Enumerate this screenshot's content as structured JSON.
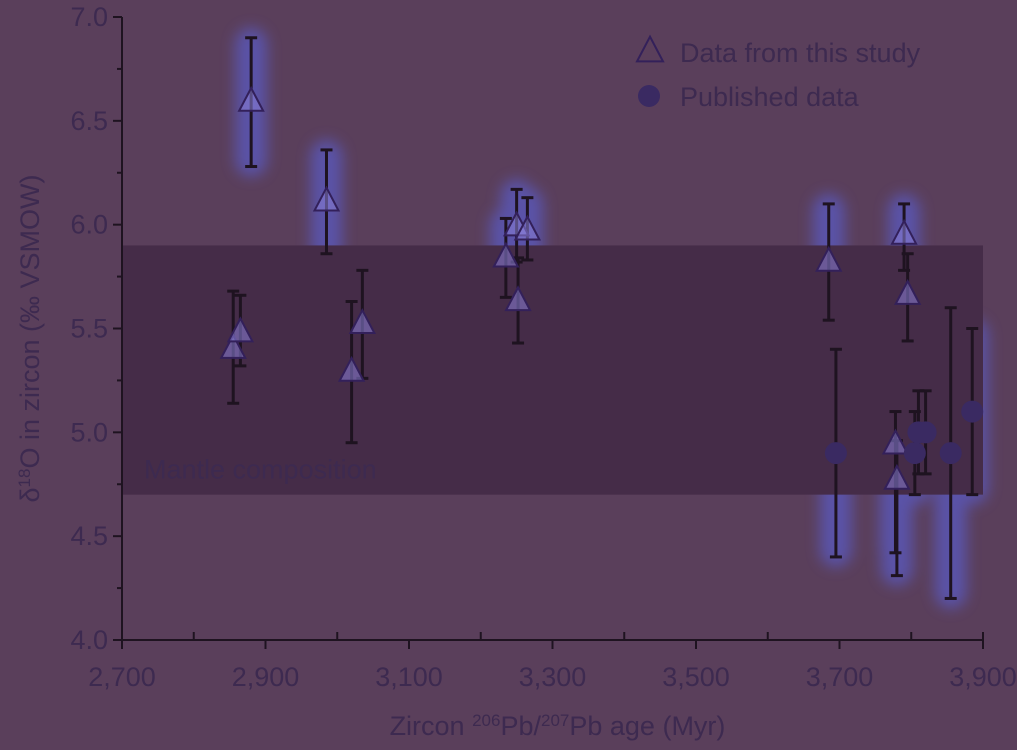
{
  "colors": {
    "background": "#5a3f5b",
    "band": "#452c48",
    "axis": "#1e1320",
    "text": "#3d2a50",
    "study_marker_fill": "#8a7fd8",
    "study_marker_stroke": "#33205a",
    "published_marker": "#3a2a62",
    "glow": "#5a63e6"
  },
  "chart_data": {
    "type": "scatter",
    "xlabel_main": "Zircon ",
    "xlabel_sup1": "206",
    "xlabel_mid": "Pb/",
    "xlabel_sup2": "207",
    "xlabel_end": "Pb age (Myr)",
    "ylabel_pre": "δ",
    "ylabel_sup": "18",
    "ylabel_post": "O in zircon (‰ VSMOW)",
    "xlim": [
      2700,
      3900
    ],
    "ylim": [
      4.0,
      7.0
    ],
    "x_ticks": [
      2700,
      2900,
      3100,
      3300,
      3500,
      3700,
      3900
    ],
    "x_tick_labels": [
      "2,700",
      "2,900",
      "3,100",
      "3,300",
      "3,500",
      "3,700",
      "3,900"
    ],
    "x_minor_ticks": [
      2800,
      3000,
      3200,
      3400,
      3600,
      3800
    ],
    "y_ticks": [
      4.0,
      4.5,
      5.0,
      5.5,
      6.0,
      6.5,
      7.0
    ],
    "y_tick_labels": [
      "4.0",
      "4.5",
      "5.0",
      "5.5",
      "6.0",
      "6.5",
      "7.0"
    ],
    "band": {
      "label": "Mantle composition",
      "y_min": 4.7,
      "y_max": 5.9
    },
    "legend_position": "top-right",
    "series": [
      {
        "name": "Data from this study",
        "marker": "triangle",
        "points": [
          {
            "x": 2855,
            "y": 5.4,
            "lo": 5.14,
            "hi": 5.68
          },
          {
            "x": 2865,
            "y": 5.48,
            "lo": 5.32,
            "hi": 5.66
          },
          {
            "x": 2880,
            "y": 6.59,
            "lo": 6.28,
            "hi": 6.9
          },
          {
            "x": 2985,
            "y": 6.11,
            "lo": 5.86,
            "hi": 6.36
          },
          {
            "x": 3020,
            "y": 5.29,
            "lo": 4.95,
            "hi": 5.63
          },
          {
            "x": 3035,
            "y": 5.52,
            "lo": 5.26,
            "hi": 5.78
          },
          {
            "x": 3235,
            "y": 5.84,
            "lo": 5.65,
            "hi": 6.03
          },
          {
            "x": 3250,
            "y": 5.99,
            "lo": 5.82,
            "hi": 6.17
          },
          {
            "x": 3252,
            "y": 5.63,
            "lo": 5.43,
            "hi": 5.84
          },
          {
            "x": 3265,
            "y": 5.97,
            "lo": 5.83,
            "hi": 6.13
          },
          {
            "x": 3685,
            "y": 5.82,
            "lo": 5.54,
            "hi": 6.1
          },
          {
            "x": 3778,
            "y": 4.94,
            "lo": 4.42,
            "hi": 5.1
          },
          {
            "x": 3780,
            "y": 4.77,
            "lo": 4.31,
            "hi": 4.96
          },
          {
            "x": 3790,
            "y": 5.95,
            "lo": 5.78,
            "hi": 6.1
          },
          {
            "x": 3795,
            "y": 5.66,
            "lo": 5.44,
            "hi": 5.86
          }
        ]
      },
      {
        "name": "Published data",
        "marker": "circle",
        "points": [
          {
            "x": 3695,
            "y": 4.9,
            "lo": 4.4,
            "hi": 5.4
          },
          {
            "x": 3805,
            "y": 4.9,
            "lo": 4.7,
            "hi": 5.1
          },
          {
            "x": 3810,
            "y": 5.0,
            "lo": 4.8,
            "hi": 5.2
          },
          {
            "x": 3820,
            "y": 5.0,
            "lo": 4.8,
            "hi": 5.2
          },
          {
            "x": 3855,
            "y": 4.9,
            "lo": 4.2,
            "hi": 5.6
          },
          {
            "x": 3885,
            "y": 5.1,
            "lo": 4.7,
            "hi": 5.5
          }
        ]
      }
    ]
  }
}
